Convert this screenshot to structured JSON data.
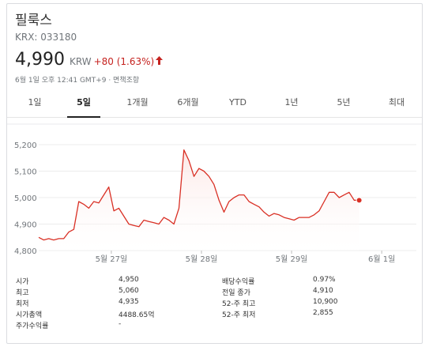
{
  "stock": {
    "name": "필룩스",
    "ticker": "KRX: 033180",
    "price": "4,990",
    "currency": "KRW",
    "change": "+80 (1.63%)",
    "change_direction": "up",
    "timestamp": "6월 1일 오후 12:41 GMT+9 · 면책조항",
    "colors": {
      "down": "#c5221f",
      "line": "#d93025",
      "fill": "#fce8e6"
    }
  },
  "tabs": [
    {
      "label": "1일",
      "active": false
    },
    {
      "label": "5일",
      "active": true
    },
    {
      "label": "1개월",
      "active": false
    },
    {
      "label": "6개월",
      "active": false
    },
    {
      "label": "YTD",
      "active": false
    },
    {
      "label": "1년",
      "active": false
    },
    {
      "label": "5년",
      "active": false
    },
    {
      "label": "최대",
      "active": false
    }
  ],
  "chart_data": {
    "type": "area",
    "title": "",
    "xlabel": "",
    "ylabel": "",
    "ylim": [
      4800,
      5200
    ],
    "yticks": [
      "5,200",
      "5,100",
      "5,000",
      "4,900",
      "4,800"
    ],
    "ytick_values": [
      5200,
      5100,
      5000,
      4900,
      4800
    ],
    "xtick_labels": [
      "5월 27일",
      "5월 28일",
      "5월 29일",
      "6월 1일"
    ],
    "xtick_index": [
      14.5,
      32.5,
      50.5,
      68.5
    ],
    "x_count": 75,
    "grid": true,
    "series": [
      {
        "values": [
          4850,
          4840,
          4845,
          4840,
          4845,
          4845,
          4870,
          4880,
          4985,
          4975,
          4960,
          4985,
          4980,
          5010,
          5040,
          4950,
          4960,
          4930,
          4900,
          4895,
          4890,
          4915,
          4910,
          4905,
          4900,
          4925,
          4915,
          4900,
          4960,
          5180,
          5140,
          5080,
          5110,
          5100,
          5080,
          5050,
          4990,
          4945,
          4985,
          5000,
          5010,
          5010,
          4985,
          4975,
          4965,
          4945,
          4930,
          4940,
          4935,
          4925,
          4920,
          4915,
          4925,
          4925,
          4925,
          4935,
          4950,
          4985,
          5020,
          5020,
          5000,
          5010,
          5020,
          4990,
          4990
        ]
      }
    ]
  },
  "stats": {
    "left": [
      {
        "label": "시가",
        "value": "4,950"
      },
      {
        "label": "최고",
        "value": "5,060"
      },
      {
        "label": "최저",
        "value": "4,935"
      },
      {
        "label": "시가총액",
        "value": "4488.65억"
      },
      {
        "label": "주가수익률",
        "value": "-"
      }
    ],
    "right": [
      {
        "label": "배당수익률",
        "value": "0.97%"
      },
      {
        "label": "전일 종가",
        "value": "4,910"
      },
      {
        "label": "52-주 최고",
        "value": "10,900"
      },
      {
        "label": "52-주 최저",
        "value": "2,855"
      }
    ]
  }
}
